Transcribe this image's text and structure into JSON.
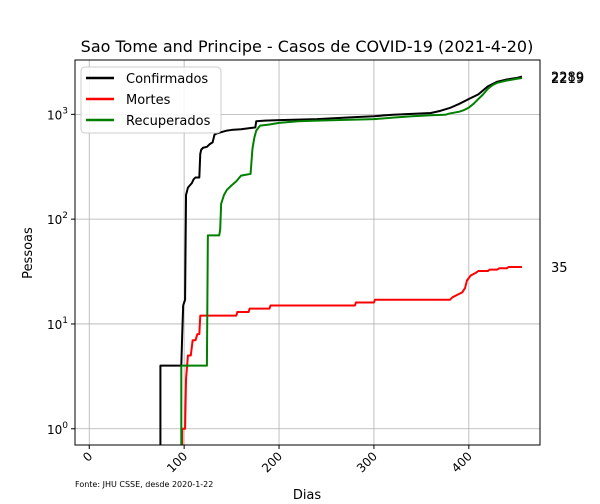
{
  "chart_data": {
    "type": "line",
    "title": "Sao Tome and Principe - Casos de COVID-19 (2021-4-20)",
    "xlabel": "Dias",
    "ylabel": "Pessoas",
    "source_note": "Fonte: JHU CSSE, desde 2020-1-22",
    "xscale": "linear",
    "yscale": "log",
    "xlim": [
      -15,
      475
    ],
    "ylim": [
      0.7,
      3300
    ],
    "x_ticks": [
      0,
      100,
      200,
      300,
      400
    ],
    "x_tick_labels": [
      "0",
      "100",
      "200",
      "300",
      "400"
    ],
    "y_ticks": [
      1,
      10,
      100,
      1000
    ],
    "y_tick_labels": [
      {
        "base": "10",
        "exp": "0"
      },
      {
        "base": "10",
        "exp": "1"
      },
      {
        "base": "10",
        "exp": "2"
      },
      {
        "base": "10",
        "exp": "3"
      }
    ],
    "grid": true,
    "legend_position": "upper-left",
    "series": [
      {
        "name": "Confirmados",
        "color": "#000000",
        "end_label": "2289",
        "points": [
          [
            75,
            0.3
          ],
          [
            75,
            4
          ],
          [
            97,
            4
          ],
          [
            98,
            8
          ],
          [
            99,
            15
          ],
          [
            100,
            16
          ],
          [
            101,
            17
          ],
          [
            102,
            170
          ],
          [
            104,
            200
          ],
          [
            106,
            210
          ],
          [
            108,
            220
          ],
          [
            110,
            240
          ],
          [
            112,
            250
          ],
          [
            116,
            250
          ],
          [
            117,
            420
          ],
          [
            118,
            460
          ],
          [
            120,
            480
          ],
          [
            124,
            490
          ],
          [
            127,
            520
          ],
          [
            130,
            540
          ],
          [
            132,
            640
          ],
          [
            135,
            660
          ],
          [
            140,
            680
          ],
          [
            145,
            700
          ],
          [
            150,
            710
          ],
          [
            160,
            720
          ],
          [
            170,
            740
          ],
          [
            175,
            750
          ],
          [
            176,
            860
          ],
          [
            185,
            870
          ],
          [
            200,
            880
          ],
          [
            220,
            890
          ],
          [
            240,
            900
          ],
          [
            260,
            920
          ],
          [
            280,
            940
          ],
          [
            300,
            960
          ],
          [
            320,
            990
          ],
          [
            340,
            1010
          ],
          [
            360,
            1030
          ],
          [
            370,
            1080
          ],
          [
            380,
            1150
          ],
          [
            390,
            1260
          ],
          [
            400,
            1400
          ],
          [
            410,
            1550
          ],
          [
            420,
            1850
          ],
          [
            430,
            2050
          ],
          [
            440,
            2150
          ],
          [
            450,
            2220
          ],
          [
            456,
            2289
          ]
        ]
      },
      {
        "name": "Mortes",
        "color": "#ff0000",
        "end_label": "35",
        "points": [
          [
            98,
            0.3
          ],
          [
            98,
            1
          ],
          [
            101,
            1
          ],
          [
            102,
            3
          ],
          [
            104,
            5
          ],
          [
            107,
            5
          ],
          [
            109,
            7
          ],
          [
            112,
            7
          ],
          [
            114,
            8
          ],
          [
            116,
            8
          ],
          [
            117,
            12
          ],
          [
            155,
            12
          ],
          [
            156,
            13
          ],
          [
            168,
            13
          ],
          [
            169,
            14
          ],
          [
            190,
            14
          ],
          [
            191,
            15
          ],
          [
            280,
            15
          ],
          [
            281,
            16
          ],
          [
            300,
            16
          ],
          [
            301,
            17
          ],
          [
            380,
            17
          ],
          [
            383,
            18
          ],
          [
            388,
            19
          ],
          [
            393,
            20
          ],
          [
            396,
            22
          ],
          [
            398,
            26
          ],
          [
            402,
            29
          ],
          [
            408,
            31
          ],
          [
            410,
            32
          ],
          [
            420,
            32
          ],
          [
            422,
            33
          ],
          [
            430,
            33
          ],
          [
            432,
            34
          ],
          [
            440,
            34
          ],
          [
            442,
            35
          ],
          [
            456,
            35
          ]
        ]
      },
      {
        "name": "Recuperados",
        "color": "#008000",
        "end_label": "2219",
        "points": [
          [
            97,
            0.3
          ],
          [
            97,
            4
          ],
          [
            124,
            4
          ],
          [
            125,
            70
          ],
          [
            137,
            70
          ],
          [
            138,
            80
          ],
          [
            139,
            140
          ],
          [
            142,
            170
          ],
          [
            145,
            190
          ],
          [
            150,
            210
          ],
          [
            155,
            230
          ],
          [
            160,
            260
          ],
          [
            165,
            265
          ],
          [
            170,
            270
          ],
          [
            172,
            470
          ],
          [
            174,
            600
          ],
          [
            176,
            700
          ],
          [
            180,
            780
          ],
          [
            190,
            800
          ],
          [
            200,
            830
          ],
          [
            220,
            860
          ],
          [
            240,
            870
          ],
          [
            260,
            880
          ],
          [
            280,
            890
          ],
          [
            300,
            900
          ],
          [
            320,
            930
          ],
          [
            340,
            960
          ],
          [
            360,
            980
          ],
          [
            375,
            990
          ],
          [
            380,
            1020
          ],
          [
            390,
            1060
          ],
          [
            395,
            1100
          ],
          [
            400,
            1160
          ],
          [
            405,
            1260
          ],
          [
            410,
            1400
          ],
          [
            415,
            1550
          ],
          [
            420,
            1750
          ],
          [
            425,
            1900
          ],
          [
            430,
            2000
          ],
          [
            440,
            2100
          ],
          [
            450,
            2180
          ],
          [
            456,
            2219
          ]
        ]
      }
    ]
  }
}
